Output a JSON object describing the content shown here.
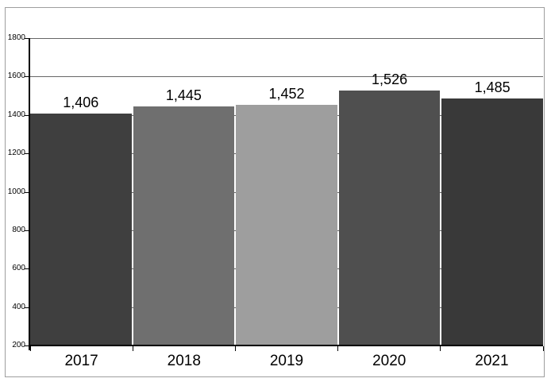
{
  "chart_data": {
    "type": "bar",
    "categories": [
      "2017",
      "2018",
      "2019",
      "2020",
      "2021"
    ],
    "values": [
      1406,
      1445,
      1452,
      1526,
      1485
    ],
    "value_labels": [
      "1,406",
      "1,445",
      "1,452",
      "1,526",
      "1,485"
    ],
    "bar_colors": [
      "#3f3f3f",
      "#6f6f6f",
      "#9e9e9e",
      "#4f4f4f",
      "#393939"
    ],
    "title": "",
    "xlabel": "",
    "ylabel": "",
    "ylim": [
      200,
      1800
    ],
    "yticks": [
      200,
      400,
      600,
      800,
      1000,
      1200,
      1400,
      1600,
      1800
    ],
    "ytick_labels": [
      "200",
      "400",
      "600",
      "800",
      "1000",
      "1200",
      "1400",
      "1600",
      "1800"
    ],
    "grid": true,
    "legend": false,
    "gridline_color": "#666666",
    "axis_color": "#000000",
    "frame_border_color": "#9e9e9e",
    "background_color": "#ffffff",
    "label_text_color": "#000000"
  }
}
